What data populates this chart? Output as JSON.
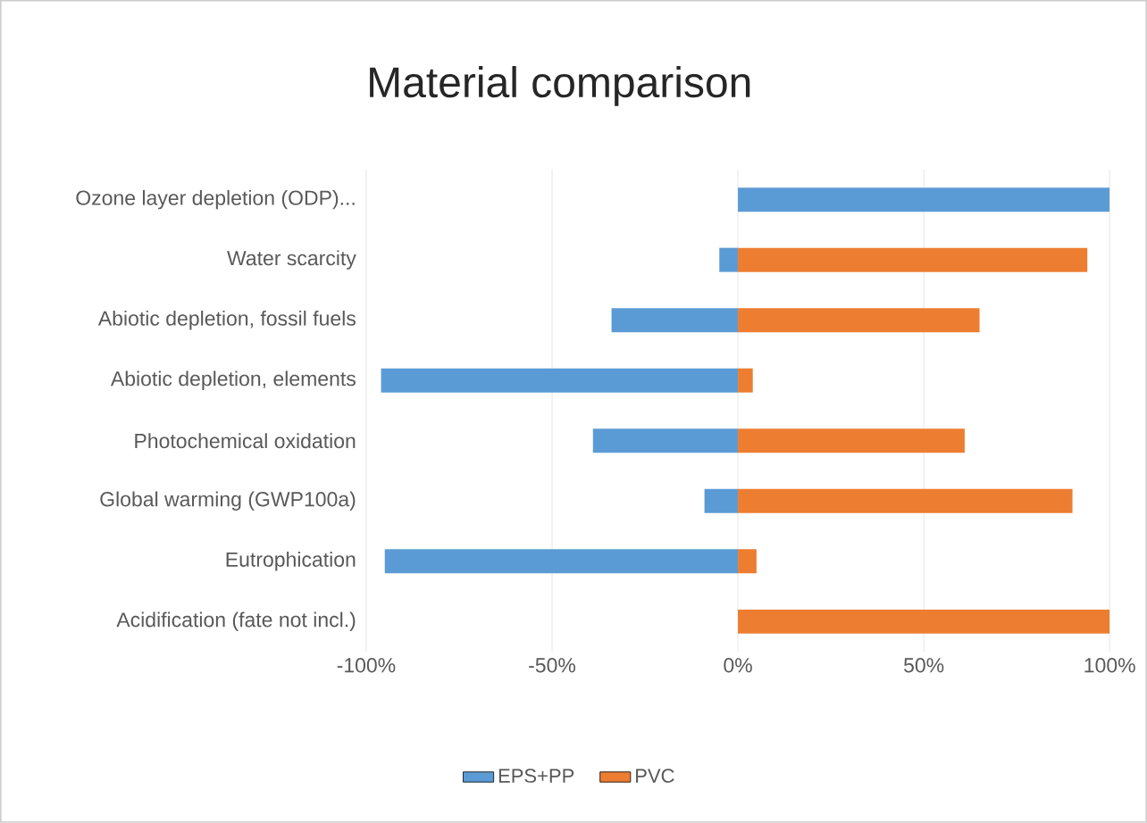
{
  "chart_data": {
    "type": "bar",
    "orientation": "horizontal",
    "title": "Material comparison",
    "categories": [
      "Ozone layer depletion (ODP)...",
      "Water scarcity",
      "Abiotic depletion, fossil fuels",
      "Abiotic depletion, elements",
      "Photochemical oxidation",
      "Global warming (GWP100a)",
      "Eutrophication",
      "Acidification (fate not incl.)"
    ],
    "series": [
      {
        "name": "EPS+PP",
        "color": "#5b9bd5",
        "values": [
          100,
          -5,
          -34,
          -96,
          -39,
          -9,
          -95,
          null
        ]
      },
      {
        "name": "PVC",
        "color": "#ed7d31",
        "values": [
          null,
          94,
          65,
          4,
          61,
          90,
          5,
          100
        ]
      }
    ],
    "xlim": [
      -100,
      100
    ],
    "xticks": [
      {
        "value": -100,
        "label": "-100%"
      },
      {
        "value": -50,
        "label": "-50%"
      },
      {
        "value": 0,
        "label": "0%"
      },
      {
        "value": 50,
        "label": "50%"
      },
      {
        "value": 100,
        "label": "100%"
      }
    ],
    "stacked": true,
    "grid": "x",
    "legend": "bottom"
  }
}
